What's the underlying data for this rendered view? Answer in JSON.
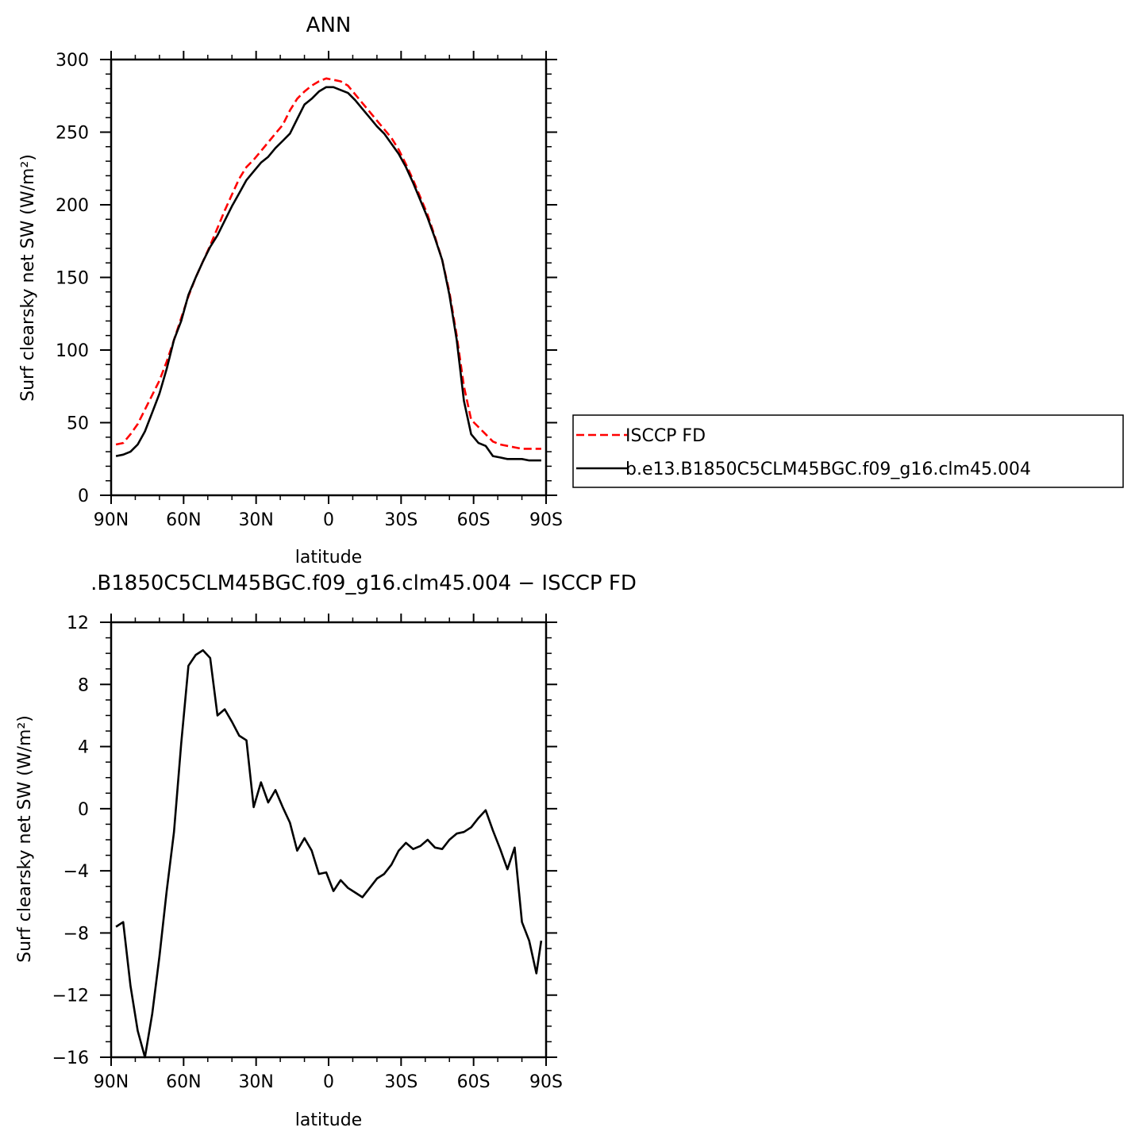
{
  "chart_data": [
    {
      "type": "line",
      "title": "ANN",
      "xlabel": "latitude",
      "ylabel": "Surf clearsky net SW (W/m²)",
      "xlim": [
        90,
        -90
      ],
      "ylim": [
        0,
        300
      ],
      "xticks": [
        90,
        60,
        30,
        0,
        -30,
        -60,
        -90
      ],
      "xtick_labels": [
        "90N",
        "60N",
        "30N",
        "0",
        "30S",
        "60S",
        "90S"
      ],
      "yticks": [
        0,
        50,
        100,
        150,
        200,
        250,
        300
      ],
      "ytick_labels": [
        "0",
        "50",
        "100",
        "150",
        "200",
        "250",
        "300"
      ],
      "legend": "right",
      "grid": false,
      "series": [
        {
          "name": "ISCCP FD",
          "color": "#ff0000",
          "style": "dashed",
          "x": [
            88,
            85,
            82,
            79,
            76,
            73,
            70,
            67,
            64,
            61,
            58,
            55,
            52,
            49,
            46,
            43,
            40,
            37,
            34,
            31,
            28,
            25,
            22,
            19,
            16,
            13,
            10,
            7,
            4,
            1,
            -2,
            -5,
            -8,
            -11,
            -14,
            -17,
            -20,
            -23,
            -26,
            -29,
            -32,
            -35,
            -38,
            -41,
            -44,
            -47,
            -50,
            -53,
            -56,
            -59,
            -62,
            -65,
            -68,
            -71,
            -74,
            -77,
            -80,
            -83,
            -86,
            -88
          ],
          "y": [
            35,
            36,
            42,
            49,
            59,
            69,
            79,
            92,
            107,
            122,
            137,
            150,
            161,
            172,
            184,
            196,
            207,
            218,
            226,
            231,
            237,
            243,
            249,
            255,
            265,
            273,
            278,
            282,
            285,
            287,
            286,
            285,
            282,
            276,
            270,
            264,
            258,
            252,
            246,
            238,
            228,
            217,
            205,
            193,
            178,
            162,
            140,
            110,
            75,
            52,
            47,
            42,
            37,
            35,
            34,
            33,
            32,
            32,
            32,
            32
          ]
        },
        {
          "name": "b.e13.B1850C5CLM45BGC.f09_g16.clm45.004",
          "color": "#000000",
          "style": "solid",
          "x": [
            88,
            85,
            82,
            79,
            76,
            73,
            70,
            67,
            64,
            61,
            58,
            55,
            52,
            49,
            46,
            43,
            40,
            37,
            34,
            31,
            28,
            25,
            22,
            19,
            16,
            13,
            10,
            7,
            4,
            1,
            -2,
            -5,
            -8,
            -11,
            -14,
            -17,
            -20,
            -23,
            -26,
            -29,
            -32,
            -35,
            -38,
            -41,
            -44,
            -47,
            -50,
            -53,
            -56,
            -59,
            -62,
            -65,
            -68,
            -71,
            -74,
            -77,
            -80,
            -83,
            -86,
            -88
          ],
          "y": [
            27,
            28,
            30,
            35,
            44,
            57,
            70,
            87,
            107,
            120,
            138,
            150,
            161,
            171,
            179,
            189,
            199,
            208,
            217,
            223,
            229,
            233,
            239,
            244,
            249,
            259,
            269,
            273,
            278,
            281,
            281,
            279,
            277,
            272,
            266,
            260,
            254,
            249,
            242,
            235,
            226,
            215,
            203,
            191,
            177,
            162,
            138,
            107,
            65,
            42,
            36,
            34,
            27,
            26,
            25,
            25,
            25,
            24,
            24,
            24
          ]
        }
      ]
    },
    {
      "type": "line",
      "title": ".B1850C5CLM45BGC.f09_g16.clm45.004 − ISCCP FD",
      "xlabel": "latitude",
      "ylabel": "Surf clearsky net SW (W/m²)",
      "xlim": [
        90,
        -90
      ],
      "ylim": [
        -16,
        12
      ],
      "xticks": [
        90,
        60,
        30,
        0,
        -30,
        -60,
        -90
      ],
      "xtick_labels": [
        "90N",
        "60N",
        "30N",
        "0",
        "30S",
        "60S",
        "90S"
      ],
      "yticks": [
        -16,
        -12,
        -8,
        -4,
        0,
        4,
        8,
        12
      ],
      "ytick_labels": [
        "−16",
        "−12",
        "−8",
        "−4",
        "0",
        "4",
        "8",
        "12"
      ],
      "grid": false,
      "series": [
        {
          "color": "#000000",
          "style": "solid",
          "x": [
            88,
            85,
            82,
            79,
            76,
            73,
            70,
            67,
            64,
            61,
            58,
            55,
            52,
            49,
            46,
            43,
            40,
            37,
            34,
            31,
            28,
            25,
            22,
            19,
            16,
            13,
            10,
            7,
            4,
            1,
            -2,
            -5,
            -8,
            -11,
            -14,
            -17,
            -20,
            -23,
            -26,
            -29,
            -32,
            -35,
            -38,
            -41,
            -44,
            -47,
            -50,
            -53,
            -56,
            -59,
            -62,
            -65,
            -68,
            -71,
            -74,
            -77,
            -80,
            -83,
            -86,
            -88
          ],
          "y": [
            -7.6,
            -7.3,
            -11.4,
            -14.3,
            -16.0,
            -13.2,
            -9.5,
            -5.3,
            -1.5,
            4.2,
            9.2,
            9.9,
            10.2,
            9.7,
            6.0,
            6.4,
            5.6,
            4.7,
            4.4,
            0.1,
            1.7,
            0.4,
            1.2,
            0.1,
            -0.9,
            -2.7,
            -1.9,
            -2.7,
            -4.2,
            -4.1,
            -5.3,
            -4.6,
            -5.1,
            -5.4,
            -5.7,
            -5.1,
            -4.5,
            -4.2,
            -3.6,
            -2.7,
            -2.2,
            -2.6,
            -2.4,
            -2.0,
            -2.5,
            -2.6,
            -2.0,
            -1.6,
            -1.5,
            -1.2,
            -0.6,
            -0.1,
            -1.4,
            -2.6,
            -3.9,
            -2.5,
            -7.3,
            -8.5,
            -10.6,
            -8.5
          ]
        }
      ]
    }
  ]
}
